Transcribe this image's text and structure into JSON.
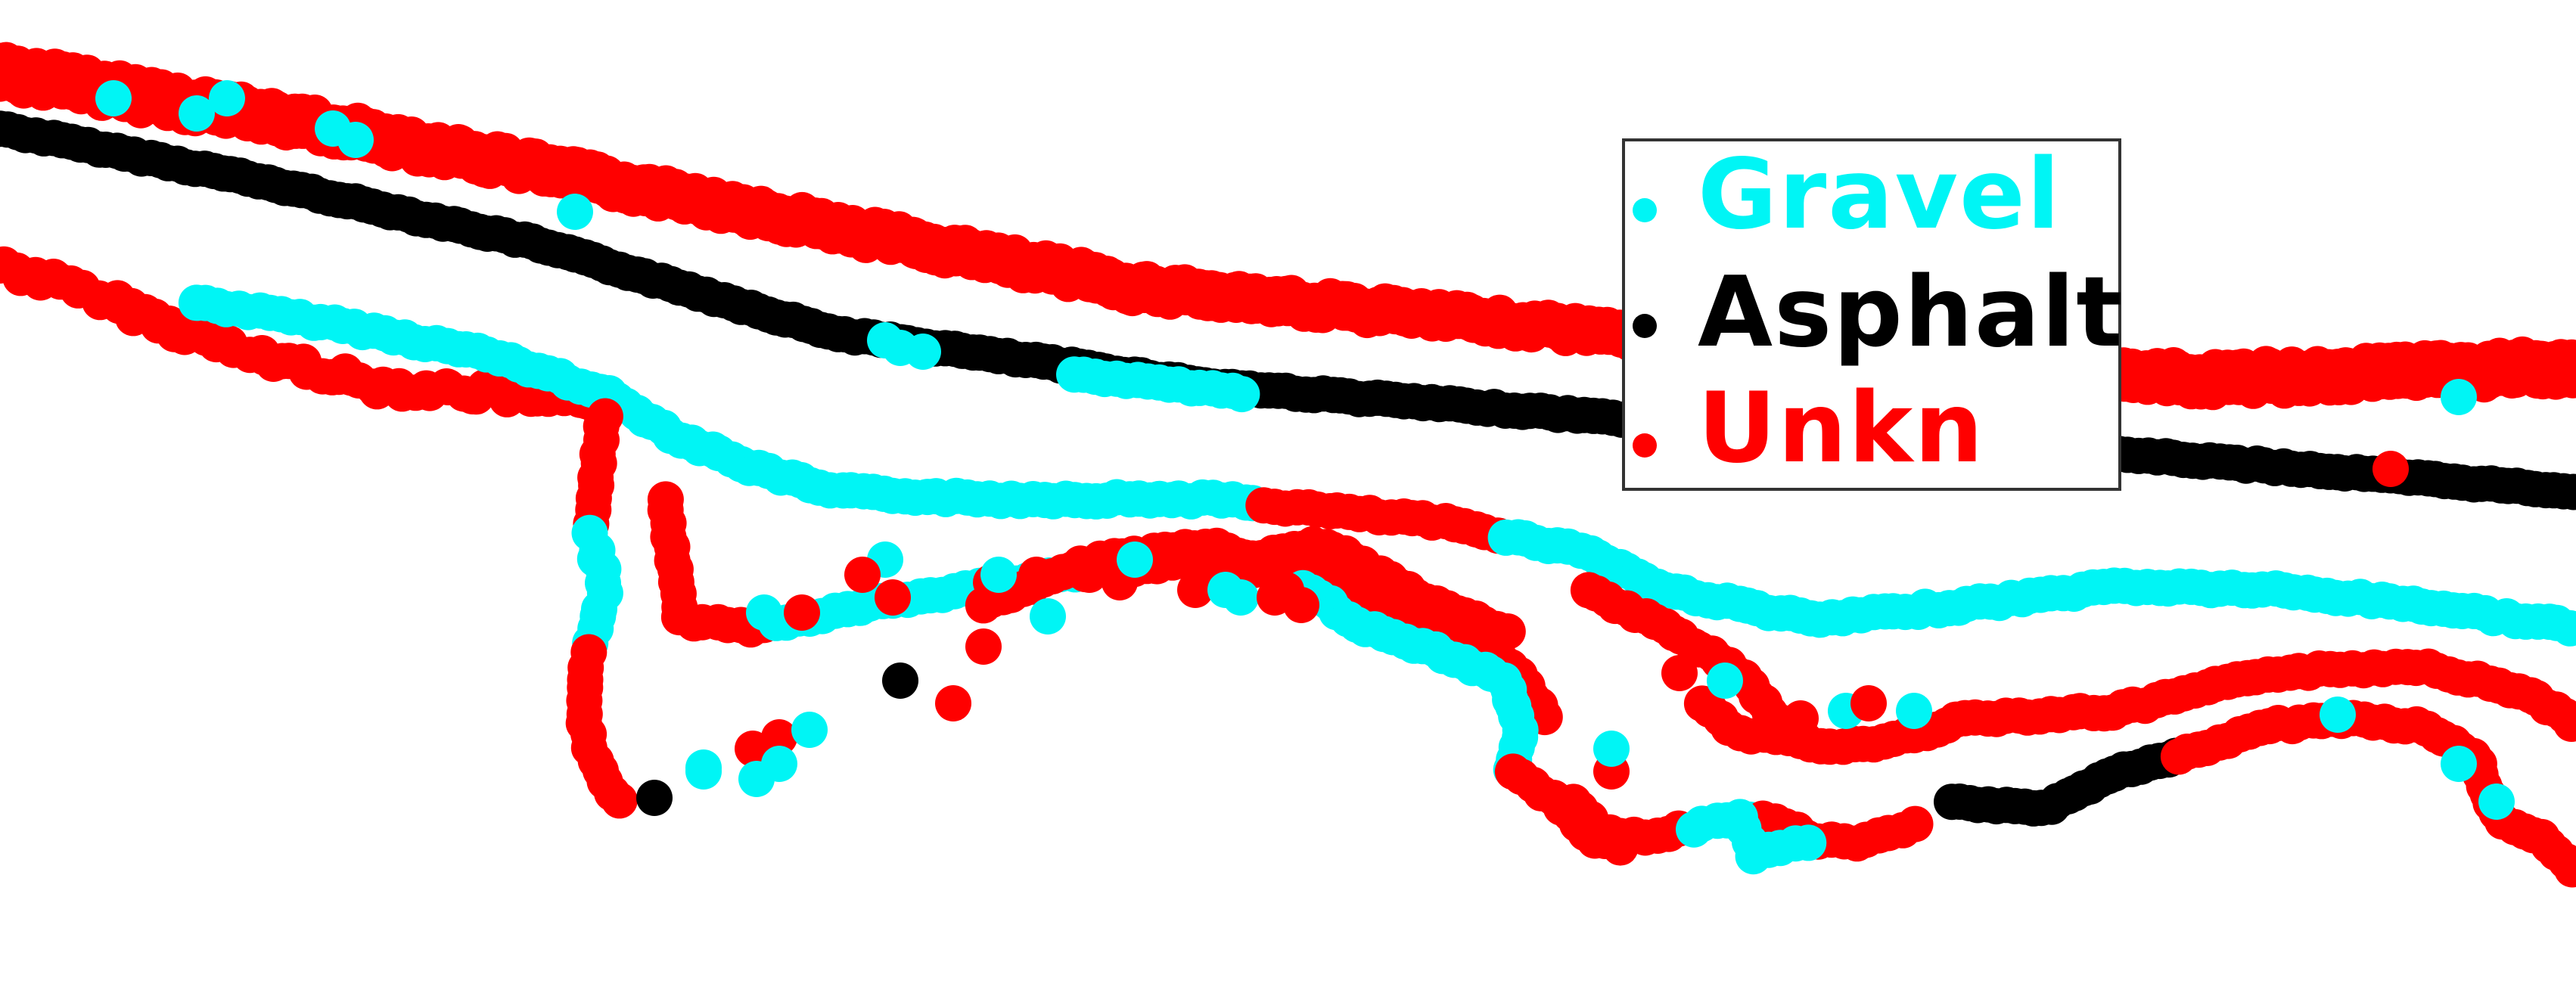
{
  "legend": {
    "items": [
      {
        "key": "gravel",
        "label": "Gravel",
        "color": "#00f5f5"
      },
      {
        "key": "asphalt",
        "label": "Asphalt",
        "color": "#000000"
      },
      {
        "key": "unkn",
        "label": "Unkn",
        "color": "#ff0000"
      }
    ]
  },
  "colors": {
    "gravel": "#00f5f5",
    "asphalt": "#000000",
    "unkn": "#ff0000",
    "background": "#ffffff",
    "legend_border": "#333333"
  }
}
